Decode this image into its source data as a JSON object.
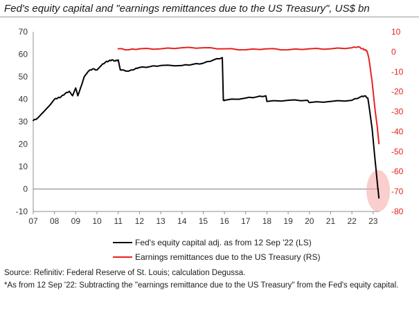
{
  "chart_data": {
    "type": "line",
    "title": "Fed's equity capital and \"earnings remittances due to the US Treasury\", US$ bn",
    "x_ticks": [
      "07",
      "08",
      "09",
      "10",
      "11",
      "12",
      "13",
      "14",
      "15",
      "16",
      "17",
      "18",
      "19",
      "20",
      "21",
      "22",
      "23"
    ],
    "x_range": [
      2007.0,
      2023.3
    ],
    "y_left": {
      "range": [
        -10,
        70
      ],
      "ticks": [
        -10,
        0,
        10,
        20,
        30,
        40,
        50,
        60,
        70
      ]
    },
    "y_right": {
      "range": [
        -80,
        10
      ],
      "ticks": [
        -80,
        -70,
        -60,
        -50,
        -40,
        -30,
        -20,
        -10,
        0,
        10
      ],
      "color": "#e8201c"
    },
    "series": [
      {
        "name": "Fed's equity capital adj. as from 12 Sep '22 (LS)",
        "axis": "left",
        "color": "#000000",
        "x": [
          2007.0,
          2007.2,
          2007.4,
          2007.6,
          2007.8,
          2008.0,
          2008.15,
          2008.3,
          2008.5,
          2008.7,
          2008.85,
          2009.0,
          2009.1,
          2009.3,
          2009.4,
          2009.6,
          2009.8,
          2010.0,
          2010.2,
          2010.4,
          2010.55,
          2010.7,
          2010.85,
          2011.0,
          2011.1,
          2011.5,
          2011.8,
          2011.95,
          2012.5,
          2013.0,
          2014.0,
          2014.5,
          2015.0,
          2015.5,
          2015.9,
          2015.95,
          2016.0,
          2017.0,
          2017.5,
          2017.95,
          2018.0,
          2019.0,
          2019.9,
          2020.0,
          2021.0,
          2022.0,
          2022.4,
          2022.6,
          2022.75,
          2022.85,
          2022.95,
          2023.0,
          2023.1,
          2023.2,
          2023.27
        ],
        "values": [
          30.5,
          31.5,
          33.5,
          35.5,
          37.5,
          40.0,
          40.5,
          41.0,
          42.5,
          43.5,
          41.5,
          45.0,
          41.5,
          47.0,
          50.0,
          52.5,
          53.5,
          53.0,
          55.0,
          56.5,
          57.0,
          57.5,
          57.0,
          57.5,
          53.0,
          52.5,
          53.5,
          54.0,
          54.5,
          55.0,
          55.0,
          55.5,
          56.0,
          57.5,
          58.5,
          39.5,
          39.5,
          40.5,
          41.0,
          41.5,
          39.0,
          39.5,
          39.5,
          38.5,
          39.0,
          39.5,
          41.0,
          41.5,
          40.5,
          34.0,
          27.0,
          22.0,
          12.0,
          2.5,
          -4.0
        ]
      },
      {
        "name": "Earnings remittances due to the US Treasury (RS)",
        "axis": "right",
        "color": "#e8201c",
        "x": [
          2011.0,
          2011.5,
          2012.0,
          2013.0,
          2014.0,
          2015.0,
          2016.0,
          2017.0,
          2018.0,
          2019.0,
          2020.0,
          2021.0,
          2022.0,
          2022.3,
          2022.5,
          2022.6,
          2022.7,
          2022.75,
          2022.8,
          2022.85,
          2022.9,
          2022.95,
          2023.0,
          2023.1,
          2023.2,
          2023.27
        ],
        "values": [
          1.5,
          1.0,
          1.5,
          1.5,
          2.0,
          2.0,
          1.5,
          1.0,
          1.5,
          1.0,
          1.5,
          1.5,
          2.0,
          2.5,
          1.5,
          1.0,
          0.5,
          -1.0,
          -3.5,
          -7.0,
          -11.0,
          -15.0,
          -20.0,
          -30.0,
          -38.0,
          -46.0
        ]
      }
    ]
  },
  "legend": [
    {
      "label": "Fed's equity capital adj. as from 12 Sep '22 (LS)",
      "color": "#000000"
    },
    {
      "label": "Earnings remittances due to the US Treasury (RS)",
      "color": "#e8201c"
    }
  ],
  "source": "Source: Refinitiv: Federal Reserve of St. Louis; calculation Degussa.",
  "footnote": "*As from 12 Sep '22: Subtracting the \"earnings remittance due to the US Treasury\" from the Fed's equity capital."
}
